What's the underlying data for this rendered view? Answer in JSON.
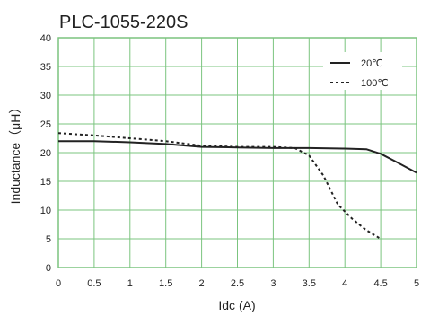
{
  "chart_data": {
    "type": "line",
    "title": "PLC-1055-220S",
    "xlabel": "Idc (A)",
    "ylabel": "Inductance（μH）",
    "xlim": [
      0,
      5
    ],
    "ylim": [
      0,
      40
    ],
    "xticks": [
      "0",
      "0.5",
      "1",
      "1.5",
      "2",
      "2.5",
      "3",
      "3.5",
      "4",
      "4.5",
      "5"
    ],
    "yticks": [
      "0",
      "5",
      "10",
      "15",
      "20",
      "25",
      "30",
      "35",
      "40"
    ],
    "grid": true,
    "legend_position": "top-right",
    "grid_color": "#7bc47f",
    "series": [
      {
        "name": "20℃",
        "style": "solid",
        "x": [
          0,
          0.5,
          1,
          1.5,
          2,
          2.5,
          3,
          3.5,
          4,
          4.3,
          4.5,
          4.7,
          5
        ],
        "y": [
          22,
          22,
          21.8,
          21.5,
          21,
          20.9,
          20.8,
          20.8,
          20.7,
          20.6,
          19.8,
          18.5,
          16.5
        ]
      },
      {
        "name": "100℃",
        "style": "dashed",
        "x": [
          0,
          0.5,
          1,
          1.5,
          2,
          2.5,
          3,
          3.3,
          3.5,
          3.7,
          3.9,
          4.1,
          4.3,
          4.5
        ],
        "y": [
          23.4,
          23,
          22.5,
          22,
          21.2,
          21,
          21,
          20.8,
          19.5,
          16,
          11,
          8.5,
          6.5,
          5
        ]
      }
    ]
  }
}
